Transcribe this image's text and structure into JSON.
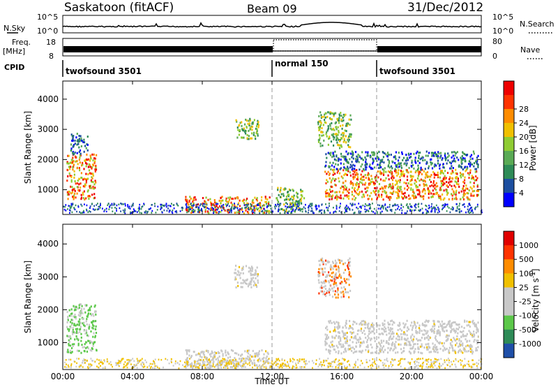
{
  "header": {
    "station": "Saskatoon (fitACF)",
    "beam": "Beam 09",
    "date": "31/Dec/2012"
  },
  "top_panels": {
    "nsky": {
      "left_label": "N.Sky",
      "right_label": "N.Search",
      "left_ticks": [
        "10^5",
        "10^0"
      ],
      "right_ticks": [
        "10^5",
        "10^0"
      ]
    },
    "freq": {
      "left_label": "Freq.",
      "left_unit": "[MHz]",
      "right_label": "Nave",
      "left_ticks": [
        "18",
        "8"
      ],
      "right_ticks": [
        "80",
        "0"
      ]
    },
    "cpid": {
      "label": "CPID",
      "segments": [
        {
          "name": "twofsound 3501",
          "start": 0,
          "end": 12
        },
        {
          "name": "normal 150",
          "start": 12,
          "end": 18
        },
        {
          "name": "twofsound 3501",
          "start": 18,
          "end": 24
        }
      ]
    }
  },
  "chart_data": [
    {
      "type": "heatmap",
      "title": "",
      "ylabel": "Slant Range [km]",
      "xlabel": "",
      "x_ticks": [
        "00:00",
        "04:00",
        "08:00",
        "12:00",
        "16:00",
        "20:00",
        "00:00"
      ],
      "xlim": [
        0,
        24
      ],
      "y_ticks": [
        "1000",
        "2000",
        "3000",
        "4000"
      ],
      "ylim": [
        180,
        4600
      ],
      "colorbar": {
        "label": "Power [dB]",
        "ticks": [
          "4",
          "8",
          "12",
          "16",
          "20",
          "24",
          "28"
        ],
        "range": [
          0,
          30
        ],
        "colors": [
          "#0000ff",
          "#1d4fa0",
          "#2e8b57",
          "#5aaa55",
          "#8fcc33",
          "#f0c000",
          "#ff8c00",
          "#ff3300",
          "#ee0000"
        ]
      },
      "regions": [
        {
          "t": [
            0.2,
            1.9
          ],
          "r": [
            700,
            2200
          ],
          "level": "high"
        },
        {
          "t": [
            0.4,
            1.4
          ],
          "r": [
            2200,
            2900
          ],
          "level": "low"
        },
        {
          "t": [
            7.0,
            11.9
          ],
          "r": [
            250,
            800
          ],
          "level": "high"
        },
        {
          "t": [
            9.8,
            11.2
          ],
          "r": [
            2700,
            3400
          ],
          "level": "mid"
        },
        {
          "t": [
            12.2,
            13.8
          ],
          "r": [
            300,
            1100
          ],
          "level": "mid"
        },
        {
          "t": [
            15.0,
            23.8
          ],
          "r": [
            700,
            1700
          ],
          "level": "high"
        },
        {
          "t": [
            15.0,
            23.8
          ],
          "r": [
            1700,
            2300
          ],
          "level": "low"
        },
        {
          "t": [
            14.6,
            16.5
          ],
          "r": [
            2400,
            3600
          ],
          "level": "mid"
        }
      ]
    },
    {
      "type": "heatmap",
      "title": "",
      "ylabel": "Slant Range [km]",
      "xlabel": "Time UT",
      "x_ticks": [
        "00:00",
        "04:00",
        "08:00",
        "12:00",
        "16:00",
        "20:00",
        "00:00"
      ],
      "xlim": [
        0,
        24
      ],
      "y_ticks": [
        "1000",
        "2000",
        "3000",
        "4000"
      ],
      "ylim": [
        180,
        4600
      ],
      "colorbar": {
        "label": "Velocity [m s^-1]",
        "ticks": [
          "1000",
          "500",
          "100",
          "25",
          "-25",
          "-100",
          "-500",
          "-1000"
        ],
        "colors": [
          "#1f4fa8",
          "#2e8b57",
          "#5cc84a",
          "#c8c8c8",
          "#c8c8c8",
          "#f0c000",
          "#ff8c00",
          "#ff3300",
          "#e00000"
        ]
      },
      "regions": [
        {
          "t": [
            0.2,
            1.9
          ],
          "r": [
            700,
            2200
          ],
          "level": "green"
        },
        {
          "t": [
            7.0,
            11.9
          ],
          "r": [
            250,
            800
          ],
          "level": "grey"
        },
        {
          "t": [
            15.0,
            23.8
          ],
          "r": [
            700,
            1700
          ],
          "level": "grey"
        },
        {
          "t": [
            9.8,
            11.2
          ],
          "r": [
            2700,
            3400
          ],
          "level": "grey"
        },
        {
          "t": [
            14.6,
            16.5
          ],
          "r": [
            2400,
            3600
          ],
          "level": "mixed"
        }
      ]
    }
  ]
}
